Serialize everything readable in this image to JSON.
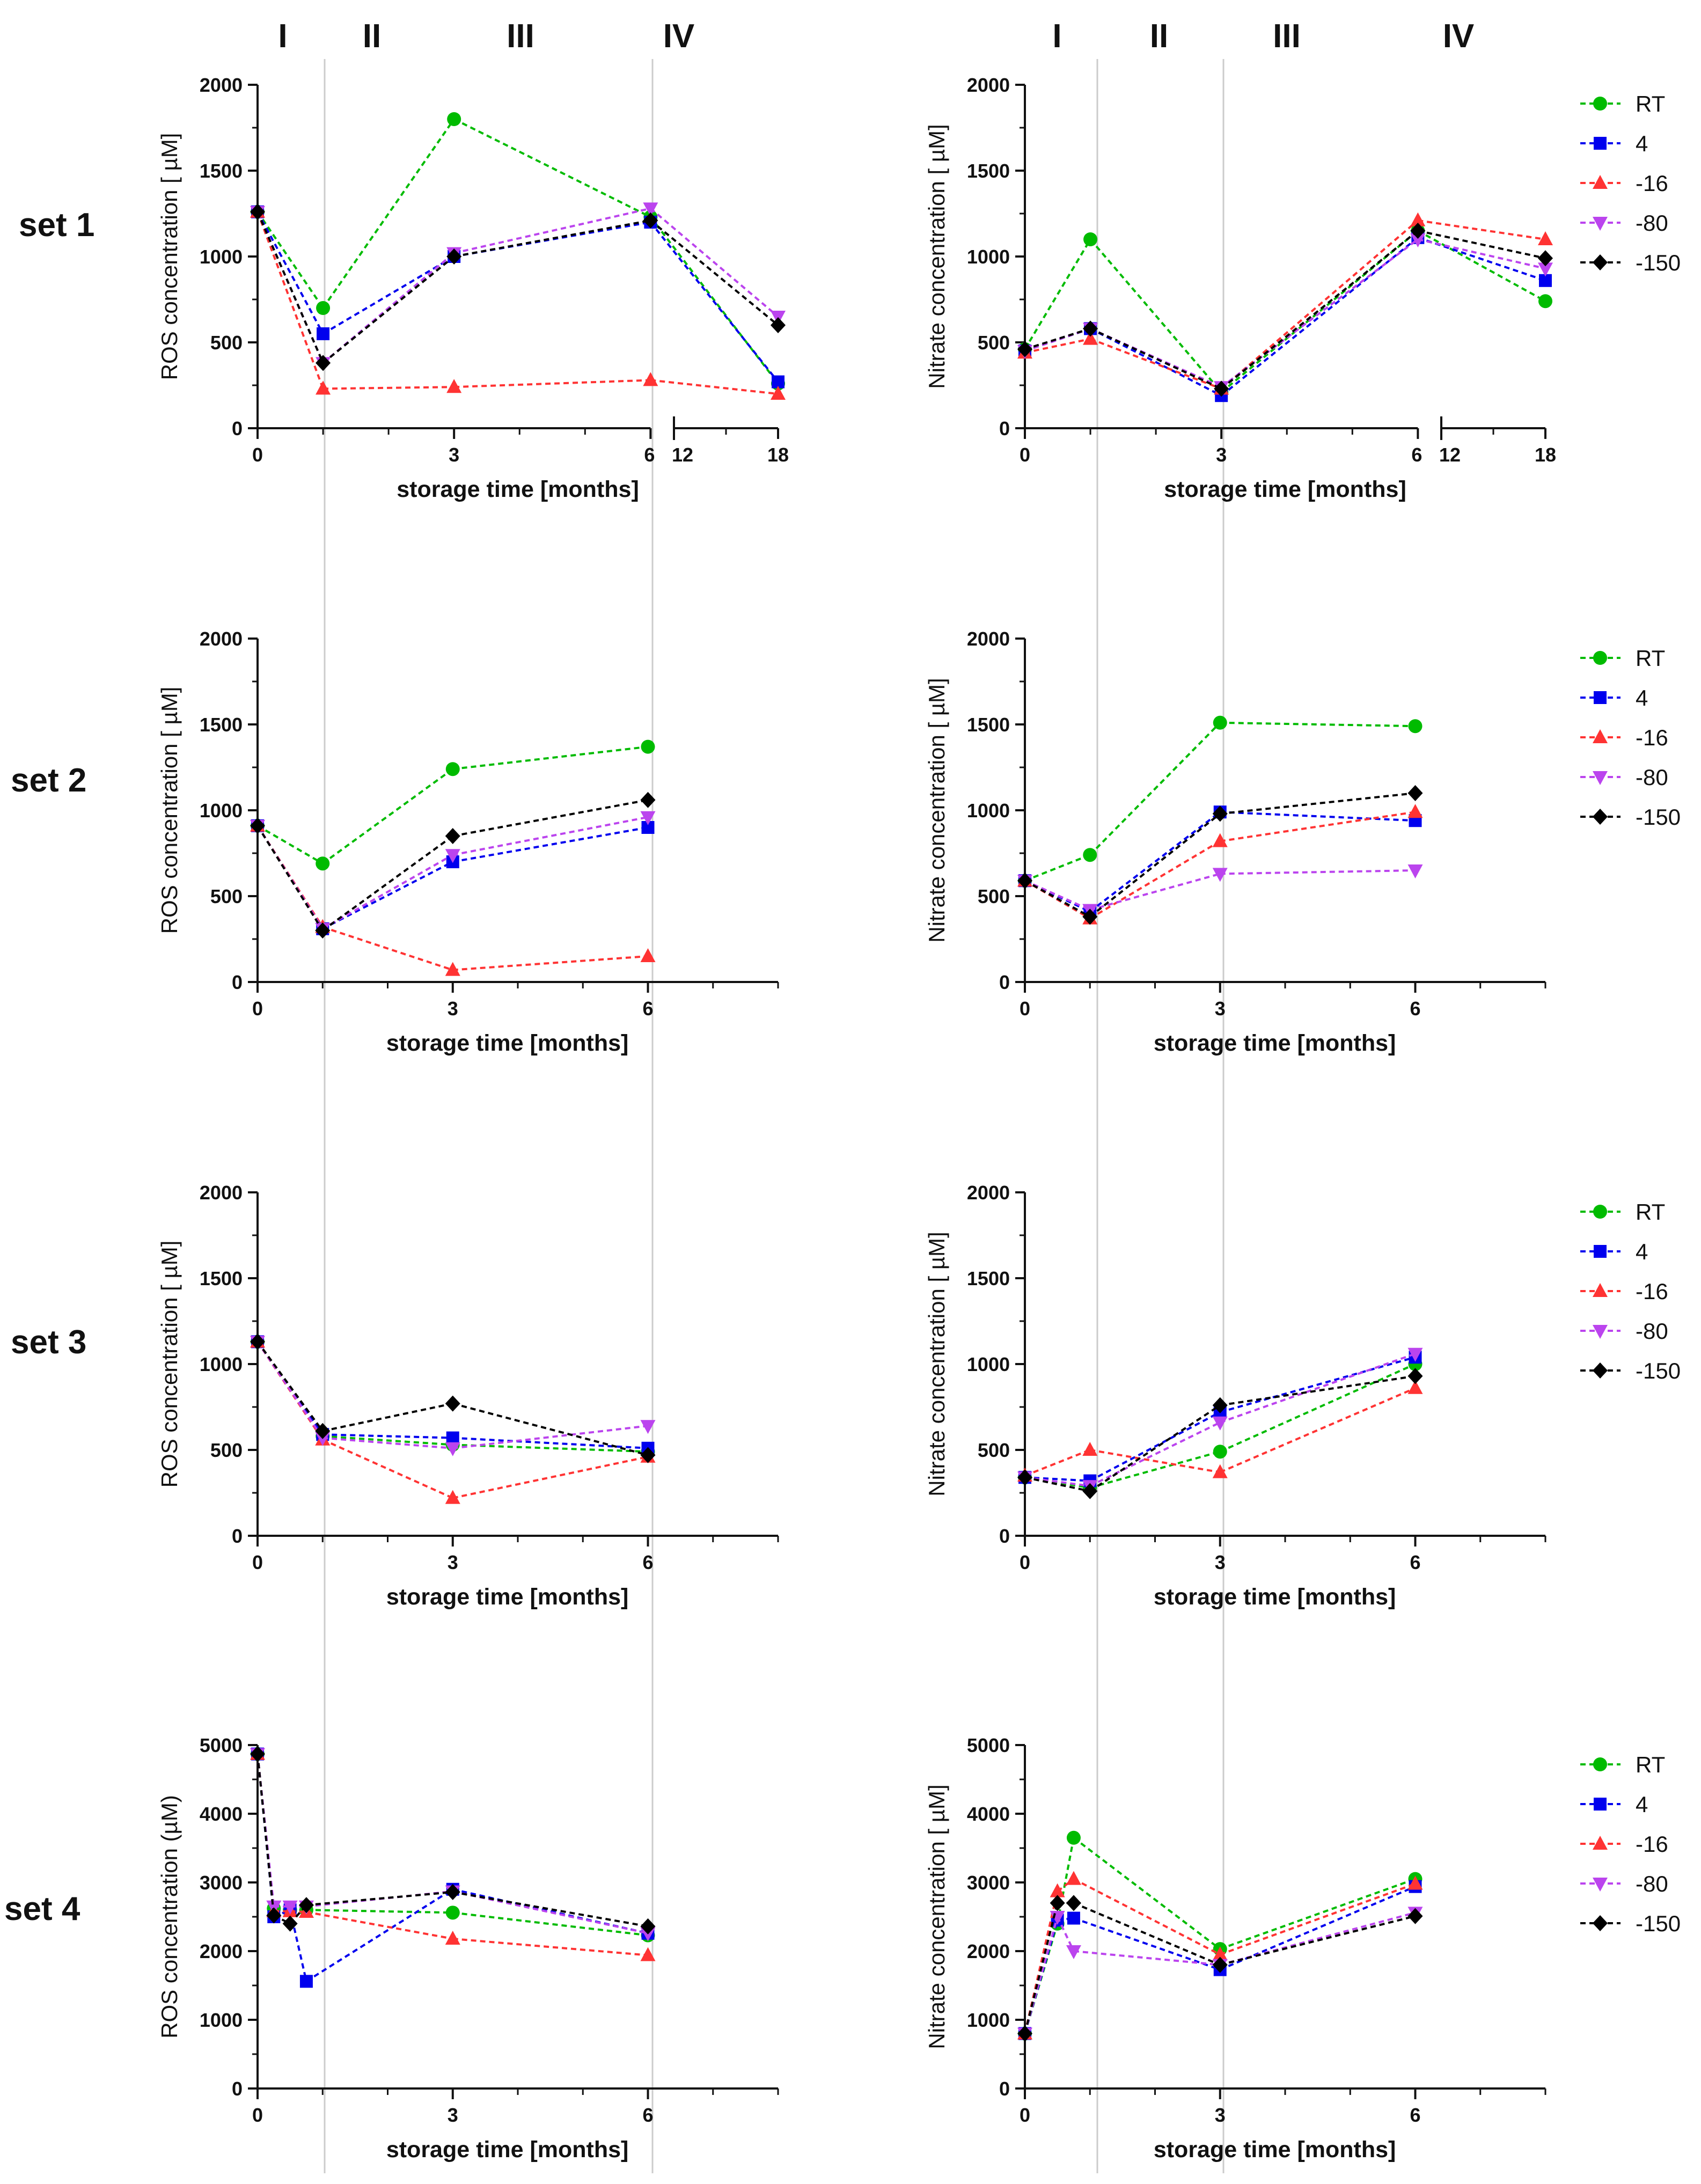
{
  "phases": [
    "I",
    "II",
    "III",
    "IV"
  ],
  "legend_labels": [
    "RT",
    "4",
    "-16",
    "-80",
    "-150"
  ],
  "colors": {
    "RT": "#00bb00",
    "4": "#0000ee",
    "-16": "#ff3333",
    "-80": "#bb44ee",
    "-150": "#000000"
  },
  "chart_data": [
    {
      "id": "ros-set1",
      "set_label": "set 1",
      "type": "line",
      "ylabel": "ROS concentration [ µM]",
      "xlabel": "storage time [months]",
      "ylim": [
        0,
        2000
      ],
      "yticks": [
        0,
        500,
        1000,
        1500,
        2000
      ],
      "x_ticks": [
        "0",
        "3",
        "6",
        "12",
        "18"
      ],
      "x_break": true,
      "x": [
        0,
        1,
        3,
        6,
        18
      ],
      "series": [
        {
          "name": "RT",
          "values": [
            1260,
            700,
            1800,
            1230,
            260
          ]
        },
        {
          "name": "4",
          "values": [
            1260,
            550,
            1000,
            1200,
            270
          ]
        },
        {
          "name": "-16",
          "values": [
            1260,
            230,
            240,
            280,
            200
          ]
        },
        {
          "name": "-80",
          "values": [
            1260,
            380,
            1020,
            1280,
            650
          ]
        },
        {
          "name": "-150",
          "values": [
            1260,
            380,
            1000,
            1210,
            600
          ]
        }
      ]
    },
    {
      "id": "nitrate-set1",
      "set_label": "",
      "type": "line",
      "ylabel": "Nitrate concentration [ µM]",
      "xlabel": "storage time [months]",
      "ylim": [
        0,
        2000
      ],
      "yticks": [
        0,
        500,
        1000,
        1500,
        2000
      ],
      "x_ticks": [
        "0",
        "3",
        "6",
        "12",
        "18"
      ],
      "x_break": true,
      "x": [
        0,
        1,
        3,
        6,
        18
      ],
      "series": [
        {
          "name": "RT",
          "values": [
            460,
            1100,
            210,
            1150,
            740
          ]
        },
        {
          "name": "4",
          "values": [
            450,
            580,
            190,
            1110,
            860
          ]
        },
        {
          "name": "-16",
          "values": [
            440,
            520,
            230,
            1210,
            1100
          ]
        },
        {
          "name": "-80",
          "values": [
            450,
            580,
            240,
            1100,
            930
          ]
        },
        {
          "name": "-150",
          "values": [
            460,
            580,
            230,
            1150,
            990
          ]
        }
      ]
    },
    {
      "id": "ros-set2",
      "set_label": "set 2",
      "type": "line",
      "ylabel": "ROS concentration [ µM]",
      "xlabel": "storage time [months]",
      "ylim": [
        0,
        2000
      ],
      "yticks": [
        0,
        500,
        1000,
        1500,
        2000
      ],
      "x_ticks": [
        "0",
        "3",
        "6"
      ],
      "x_break": false,
      "x": [
        0,
        1,
        3,
        6
      ],
      "series": [
        {
          "name": "RT",
          "values": [
            910,
            690,
            1240,
            1370
          ]
        },
        {
          "name": "4",
          "values": [
            910,
            310,
            700,
            900
          ]
        },
        {
          "name": "-16",
          "values": [
            910,
            320,
            70,
            150
          ]
        },
        {
          "name": "-80",
          "values": [
            910,
            310,
            740,
            960
          ]
        },
        {
          "name": "-150",
          "values": [
            910,
            300,
            850,
            1060
          ]
        }
      ]
    },
    {
      "id": "nitrate-set2",
      "set_label": "",
      "type": "line",
      "ylabel": "Nitrate concentration [ µM]",
      "xlabel": "storage time [months]",
      "ylim": [
        0,
        2000
      ],
      "yticks": [
        0,
        500,
        1000,
        1500,
        2000
      ],
      "x_ticks": [
        "0",
        "3",
        "6"
      ],
      "x_break": false,
      "x": [
        0,
        1,
        3,
        6
      ],
      "series": [
        {
          "name": "RT",
          "values": [
            590,
            740,
            1510,
            1490
          ]
        },
        {
          "name": "4",
          "values": [
            590,
            410,
            990,
            940
          ]
        },
        {
          "name": "-16",
          "values": [
            590,
            370,
            820,
            990
          ]
        },
        {
          "name": "-80",
          "values": [
            590,
            420,
            630,
            650
          ]
        },
        {
          "name": "-150",
          "values": [
            590,
            380,
            980,
            1100
          ]
        }
      ]
    },
    {
      "id": "ros-set3",
      "set_label": "set 3",
      "type": "line",
      "ylabel": "ROS concentration [ µM]",
      "xlabel": "storage time [months]",
      "ylim": [
        0,
        2000
      ],
      "yticks": [
        0,
        500,
        1000,
        1500,
        2000
      ],
      "x_ticks": [
        "0",
        "3",
        "6"
      ],
      "x_break": false,
      "x": [
        0,
        1,
        3,
        6
      ],
      "series": [
        {
          "name": "RT",
          "values": [
            1130,
            580,
            530,
            490
          ]
        },
        {
          "name": "4",
          "values": [
            1130,
            590,
            570,
            510
          ]
        },
        {
          "name": "-16",
          "values": [
            1130,
            560,
            220,
            460
          ]
        },
        {
          "name": "-80",
          "values": [
            1130,
            570,
            510,
            640
          ]
        },
        {
          "name": "-150",
          "values": [
            1130,
            610,
            770,
            470
          ]
        }
      ]
    },
    {
      "id": "nitrate-set3",
      "set_label": "",
      "type": "line",
      "ylabel": "Nitrate concentration [ µM]",
      "xlabel": "storage time [months]",
      "ylim": [
        0,
        2000
      ],
      "yticks": [
        0,
        500,
        1000,
        1500,
        2000
      ],
      "x_ticks": [
        "0",
        "3",
        "6"
      ],
      "x_break": false,
      "x": [
        0,
        1,
        3,
        6
      ],
      "series": [
        {
          "name": "RT",
          "values": [
            340,
            280,
            490,
            1000
          ]
        },
        {
          "name": "4",
          "values": [
            340,
            320,
            720,
            1040
          ]
        },
        {
          "name": "-16",
          "values": [
            350,
            500,
            370,
            860
          ]
        },
        {
          "name": "-80",
          "values": [
            340,
            290,
            660,
            1060
          ]
        },
        {
          "name": "-150",
          "values": [
            340,
            260,
            760,
            930
          ]
        }
      ]
    },
    {
      "id": "ros-set4",
      "set_label": "set 4",
      "type": "line",
      "ylabel": "ROS concentration (µM)",
      "xlabel": "storage time [months]",
      "ylim": [
        0,
        5000
      ],
      "yticks": [
        0,
        1000,
        2000,
        3000,
        4000,
        5000
      ],
      "x_ticks": [
        "0",
        "3",
        "6"
      ],
      "x_break": false,
      "x": [
        0,
        0.25,
        0.5,
        0.75,
        3,
        6
      ],
      "series": [
        {
          "name": "RT",
          "values": [
            4870,
            2620,
            2600,
            2600,
            2560,
            2230
          ]
        },
        {
          "name": "4",
          "values": [
            4870,
            2500,
            2600,
            1560,
            2900,
            2260
          ]
        },
        {
          "name": "-16",
          "values": [
            4870,
            2580,
            2580,
            2570,
            2180,
            1940
          ]
        },
        {
          "name": "-80",
          "values": [
            4870,
            2650,
            2650,
            2650,
            2870,
            2260
          ]
        },
        {
          "name": "-150",
          "values": [
            4870,
            2520,
            2400,
            2670,
            2860,
            2360
          ]
        }
      ]
    },
    {
      "id": "nitrate-set4",
      "set_label": "",
      "type": "line",
      "ylabel": "Nitrate concentration [ µM]",
      "xlabel": "storage time [months]",
      "ylim": [
        0,
        5000
      ],
      "yticks": [
        0,
        1000,
        2000,
        3000,
        4000,
        5000
      ],
      "x_ticks": [
        "0",
        "3",
        "6"
      ],
      "x_break": false,
      "x": [
        0,
        0.5,
        0.75,
        3,
        6
      ],
      "series": [
        {
          "name": "RT",
          "values": [
            800,
            2400,
            3650,
            2030,
            3050
          ]
        },
        {
          "name": "4",
          "values": [
            800,
            2450,
            2480,
            1730,
            2940
          ]
        },
        {
          "name": "-16",
          "values": [
            800,
            2870,
            3050,
            1950,
            2980
          ]
        },
        {
          "name": "-80",
          "values": [
            800,
            2500,
            2000,
            1800,
            2560
          ]
        },
        {
          "name": "-150",
          "values": [
            800,
            2700,
            2700,
            1800,
            2510
          ]
        }
      ]
    }
  ]
}
